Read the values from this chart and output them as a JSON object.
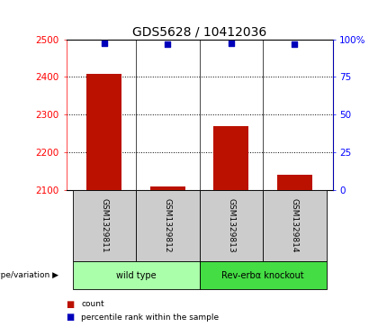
{
  "title": "GDS5628 / 10412036",
  "samples": [
    "GSM1329811",
    "GSM1329812",
    "GSM1329813",
    "GSM1329814"
  ],
  "bar_values": [
    2407,
    2108,
    2270,
    2140
  ],
  "percentile_values": [
    97.5,
    97.0,
    97.5,
    97.0
  ],
  "ylim_left": [
    2100,
    2500
  ],
  "ylim_right": [
    0,
    100
  ],
  "yticks_left": [
    2100,
    2200,
    2300,
    2400,
    2500
  ],
  "yticks_right": [
    0,
    25,
    50,
    75,
    100
  ],
  "bar_color": "#bb1100",
  "dot_color": "#0000bb",
  "bar_bottom": 2100,
  "groups": [
    {
      "label": "wild type",
      "indices": [
        0,
        1
      ],
      "color": "#aaffaa"
    },
    {
      "label": "Rev-erbα knockout",
      "indices": [
        2,
        3
      ],
      "color": "#44dd44"
    }
  ],
  "legend_items": [
    {
      "color": "#bb1100",
      "label": "count"
    },
    {
      "color": "#0000bb",
      "label": "percentile rank within the sample"
    }
  ],
  "genotype_label": "genotype/variation",
  "title_fontsize": 10,
  "tick_fontsize": 7.5,
  "label_fontsize": 7,
  "bar_width": 0.55
}
